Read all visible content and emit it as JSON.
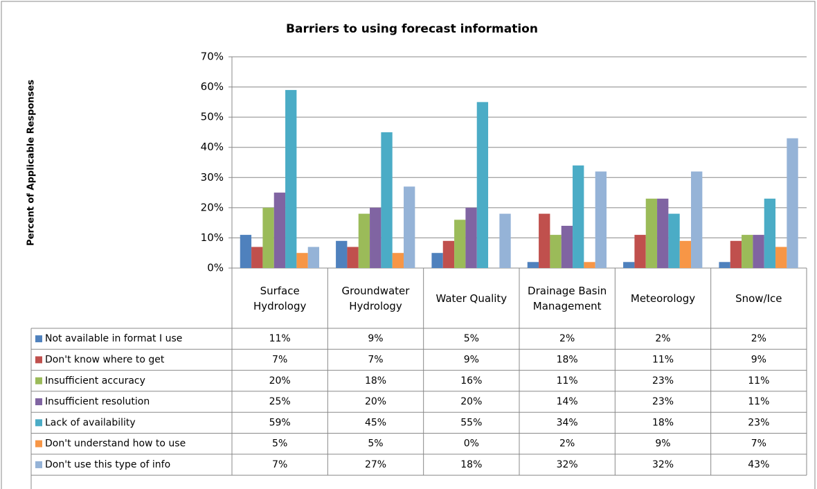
{
  "chart_data": {
    "type": "bar",
    "title": "Barriers to using forecast information",
    "y_label": "Percent of Applicable  Responses",
    "categories": [
      "Surface Hydrology",
      "Groundwater Hydrology",
      "Water Quality",
      "Drainage Basin Management",
      "Meteorology",
      "Snow/Ice"
    ],
    "series": [
      {
        "name": "Not available in format I use",
        "color": "#4f81bd",
        "values": [
          11,
          9,
          5,
          2,
          2,
          2
        ],
        "value_labels": [
          "11%",
          "9%",
          "5%",
          "2%",
          "2%",
          "2%"
        ]
      },
      {
        "name": "Don't know where to get",
        "color": "#c0504d",
        "values": [
          7,
          7,
          9,
          18,
          11,
          9
        ],
        "value_labels": [
          "7%",
          "7%",
          "9%",
          "18%",
          "11%",
          "9%"
        ]
      },
      {
        "name": "Insufficient accuracy",
        "color": "#9bbb59",
        "values": [
          20,
          18,
          16,
          11,
          23,
          11
        ],
        "value_labels": [
          "20%",
          "18%",
          "16%",
          "11%",
          "23%",
          "11%"
        ]
      },
      {
        "name": "Insufficient resolution",
        "color": "#8064a2",
        "values": [
          25,
          20,
          20,
          14,
          23,
          11
        ],
        "value_labels": [
          "25%",
          "20%",
          "20%",
          "14%",
          "23%",
          "11%"
        ]
      },
      {
        "name": "Lack of availability",
        "color": "#4bacc6",
        "values": [
          59,
          45,
          55,
          34,
          18,
          23
        ],
        "value_labels": [
          "59%",
          "45%",
          "55%",
          "34%",
          "18%",
          "23%"
        ]
      },
      {
        "name": "Don't understand how to use",
        "color": "#f79646",
        "values": [
          5,
          5,
          0,
          2,
          9,
          7
        ],
        "value_labels": [
          "5%",
          "5%",
          "0%",
          "2%",
          "9%",
          "7%"
        ]
      },
      {
        "name": "Don't use this type of info",
        "color": "#95b3d7",
        "values": [
          7,
          27,
          18,
          32,
          32,
          43
        ],
        "value_labels": [
          "7%",
          "27%",
          "18%",
          "32%",
          "32%",
          "43%"
        ]
      }
    ],
    "ylim": [
      0,
      70
    ],
    "yticks": [
      {
        "value": 0,
        "label": "0%"
      },
      {
        "value": 10,
        "label": "10%"
      },
      {
        "value": 20,
        "label": "20%"
      },
      {
        "value": 30,
        "label": "30%"
      },
      {
        "value": 40,
        "label": "40%"
      },
      {
        "value": 50,
        "label": "50%"
      },
      {
        "value": 60,
        "label": "60%"
      },
      {
        "value": 70,
        "label": "70%"
      }
    ],
    "grid": true
  }
}
